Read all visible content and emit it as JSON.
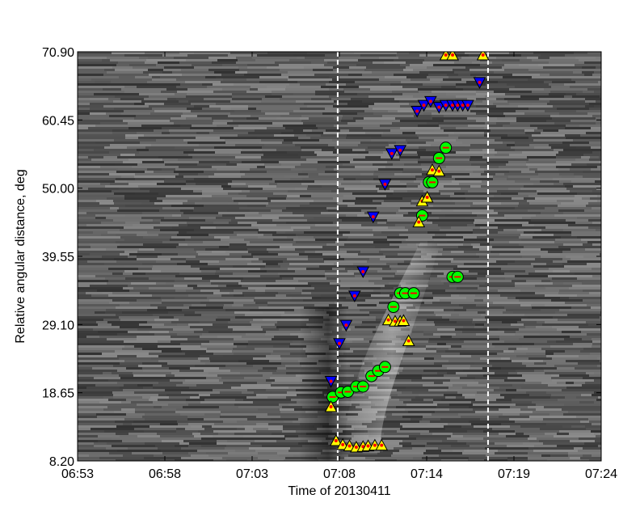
{
  "chart_data": {
    "type": "scatter",
    "title": "",
    "xlabel": "Time of 20130411",
    "ylabel": "Relative angular distance, deg",
    "x_tick_labels": [
      "06:53",
      "06:58",
      "07:03",
      "07:08",
      "07:14",
      "07:19",
      "07:24"
    ],
    "y_tick_labels": [
      "8.20",
      "18.65",
      "29.10",
      "39.55",
      "50.00",
      "60.45",
      "70.90"
    ],
    "x_range_minutes_after_0653": [
      0,
      31
    ],
    "ylim": [
      8.2,
      70.9
    ],
    "grid": false,
    "legend": "none",
    "background": "grayscale time-distance map",
    "vertical_dashed_lines_minutes_after_0653": [
      15.4,
      24.3
    ],
    "series": [
      {
        "marker": "down-triangle",
        "color": "#0000ff",
        "x_minutes_after_0653": [
          15.0,
          15.5,
          15.9,
          16.4,
          16.9,
          17.5,
          18.2,
          18.6,
          19.1,
          20.1,
          20.5,
          20.9,
          21.4,
          21.8,
          22.2,
          22.5,
          22.8,
          23.1,
          23.8
        ],
        "y": [
          20.4,
          26.2,
          29.0,
          33.5,
          37.2,
          45.6,
          50.6,
          55.3,
          55.8,
          61.8,
          62.7,
          63.3,
          62.4,
          62.7,
          62.7,
          62.7,
          62.7,
          62.7,
          66.2
        ]
      },
      {
        "marker": "circle",
        "color": "#00ff00",
        "x_minutes_after_0653": [
          15.1,
          15.6,
          16.0,
          16.5,
          16.9,
          17.4,
          17.8,
          18.2,
          18.7,
          19.1,
          19.4,
          19.9,
          20.4,
          20.8,
          21.0,
          21.4,
          21.8,
          22.2,
          22.5
        ],
        "y": [
          18.0,
          18.7,
          18.8,
          19.6,
          19.6,
          21.2,
          22.0,
          22.6,
          31.8,
          33.9,
          33.9,
          33.9,
          45.8,
          50.9,
          50.9,
          54.6,
          56.2,
          36.4,
          36.4
        ]
      },
      {
        "marker": "up-triangle",
        "color": "#ffff00",
        "x_minutes_after_0653": [
          15.0,
          15.3,
          15.7,
          16.1,
          16.5,
          16.9,
          17.2,
          17.6,
          18.0,
          18.4,
          18.8,
          19.1,
          19.3,
          19.6,
          20.2,
          20.4,
          20.7,
          21.0,
          21.4,
          21.8,
          22.2,
          24.0
        ],
        "y": [
          16.5,
          11.3,
          10.7,
          10.5,
          10.3,
          10.4,
          10.5,
          10.6,
          10.6,
          29.8,
          29.6,
          29.6,
          29.7,
          26.6,
          44.8,
          48.0,
          48.6,
          52.8,
          52.6,
          70.4,
          70.4,
          70.4
        ]
      }
    ]
  }
}
